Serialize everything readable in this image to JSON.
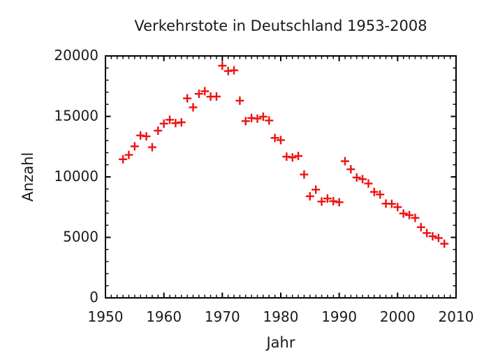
{
  "chart_data": {
    "type": "scatter",
    "title": "Verkehrstote in Deutschland 1953-2008",
    "xlabel": "Jahr",
    "ylabel": "Anzahl",
    "xlim": [
      1950,
      2010
    ],
    "ylim": [
      0,
      20000
    ],
    "xtick_values": [
      1950,
      1960,
      1970,
      1980,
      1990,
      2000,
      2010
    ],
    "xtick_labels": [
      "1950",
      "1960",
      "1970",
      "1980",
      "1990",
      "2000",
      "2010"
    ],
    "xtick_minor_step": 1,
    "ytick_values": [
      0,
      5000,
      10000,
      15000,
      20000
    ],
    "ytick_labels": [
      "0",
      "5000",
      "10000",
      "15000",
      "20000"
    ],
    "ytick_minor_step": 1000,
    "grid": false,
    "legend": "none",
    "marker": "plus",
    "marker_color": "#ee1111",
    "axis_color": "#000000",
    "background": "#ffffff",
    "series": [
      {
        "name": "Verkehrstote",
        "points": [
          [
            1953,
            11456
          ],
          [
            1954,
            11818
          ],
          [
            1955,
            12528
          ],
          [
            1956,
            13427
          ],
          [
            1957,
            13354
          ],
          [
            1958,
            12457
          ],
          [
            1959,
            13822
          ],
          [
            1960,
            14406
          ],
          [
            1961,
            14722
          ],
          [
            1962,
            14445
          ],
          [
            1963,
            14513
          ],
          [
            1964,
            16494
          ],
          [
            1965,
            15753
          ],
          [
            1966,
            16868
          ],
          [
            1967,
            17084
          ],
          [
            1968,
            16636
          ],
          [
            1969,
            16646
          ],
          [
            1970,
            19193
          ],
          [
            1971,
            18753
          ],
          [
            1972,
            18811
          ],
          [
            1973,
            16302
          ],
          [
            1974,
            14614
          ],
          [
            1975,
            14870
          ],
          [
            1976,
            14820
          ],
          [
            1977,
            14978
          ],
          [
            1978,
            14662
          ],
          [
            1979,
            13222
          ],
          [
            1980,
            13041
          ],
          [
            1981,
            11674
          ],
          [
            1982,
            11608
          ],
          [
            1983,
            11732
          ],
          [
            1984,
            10199
          ],
          [
            1985,
            8400
          ],
          [
            1986,
            8948
          ],
          [
            1987,
            7967
          ],
          [
            1988,
            8213
          ],
          [
            1989,
            7995
          ],
          [
            1990,
            7906
          ],
          [
            1991,
            11300
          ],
          [
            1992,
            10631
          ],
          [
            1993,
            9949
          ],
          [
            1994,
            9814
          ],
          [
            1995,
            9454
          ],
          [
            1996,
            8758
          ],
          [
            1997,
            8549
          ],
          [
            1998,
            7792
          ],
          [
            1999,
            7772
          ],
          [
            2000,
            7503
          ],
          [
            2001,
            6977
          ],
          [
            2002,
            6842
          ],
          [
            2003,
            6613
          ],
          [
            2004,
            5842
          ],
          [
            2005,
            5361
          ],
          [
            2006,
            5091
          ],
          [
            2007,
            4949
          ],
          [
            2008,
            4477
          ]
        ]
      }
    ]
  }
}
